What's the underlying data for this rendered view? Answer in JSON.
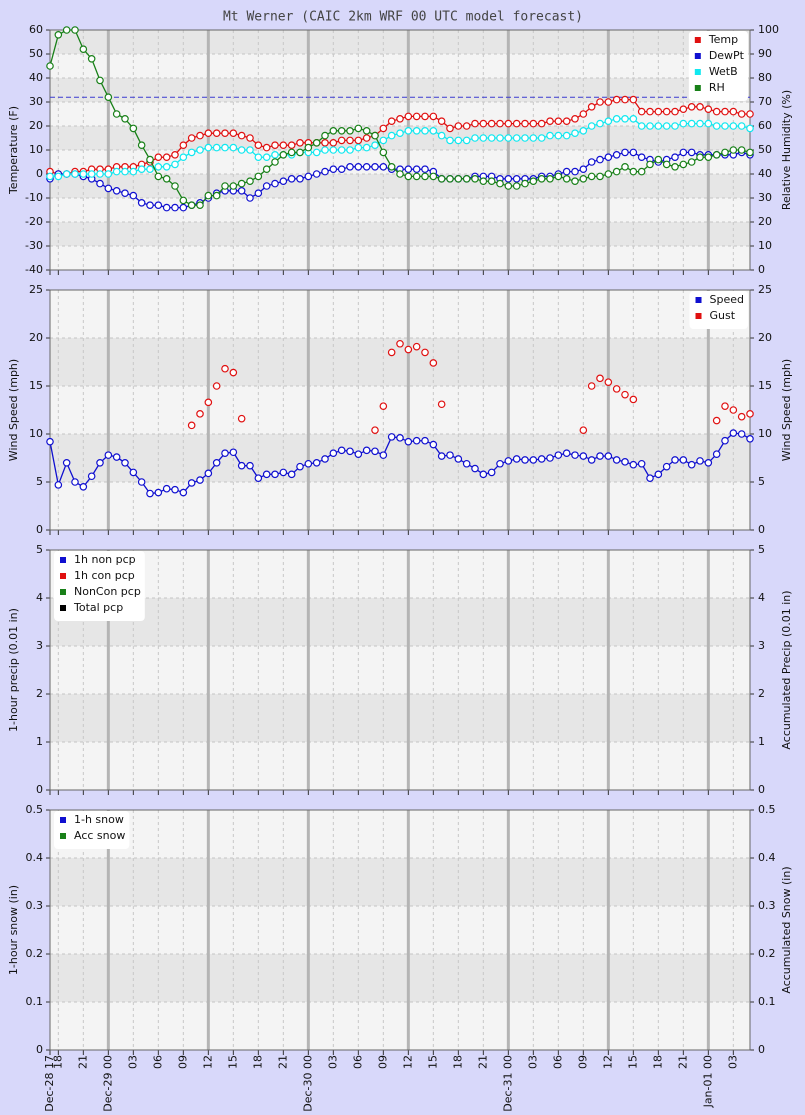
{
  "chart_data": [
    {
      "type": "line",
      "title": "Mt Werner (CAIC 2km WRF 00 UTC model forecast)",
      "ylabel": "Temperature (F)",
      "y2label": "Relative Humidity (%)",
      "legend": "upper right",
      "xlim": [
        0,
        84
      ],
      "ylim": [
        -40,
        60
      ],
      "yticks": [
        -40,
        -30,
        -20,
        -10,
        0,
        10,
        20,
        30,
        40,
        50,
        60
      ],
      "y2lim": [
        0,
        100
      ],
      "y2ticks": [
        0,
        10,
        20,
        30,
        40,
        50,
        60,
        70,
        80,
        90,
        100
      ],
      "hline": {
        "value": 32,
        "color": "#3a3ad0"
      },
      "x": [
        0,
        1,
        2,
        3,
        4,
        5,
        6,
        7,
        8,
        9,
        10,
        11,
        12,
        13,
        14,
        15,
        16,
        17,
        18,
        19,
        20,
        21,
        22,
        23,
        24,
        25,
        26,
        27,
        28,
        29,
        30,
        31,
        32,
        33,
        34,
        35,
        36,
        37,
        38,
        39,
        40,
        41,
        42,
        43,
        44,
        45,
        46,
        47,
        48,
        49,
        50,
        51,
        52,
        53,
        54,
        55,
        56,
        57,
        58,
        59,
        60,
        61,
        62,
        63,
        64,
        65,
        66,
        67,
        68,
        69,
        70,
        71,
        72,
        73,
        74,
        75,
        76,
        77,
        78,
        79,
        80,
        81,
        82,
        83,
        84
      ],
      "series": [
        {
          "name": "Temp",
          "color": "#e01010",
          "values": [
            1,
            0,
            0,
            1,
            1,
            2,
            2,
            2,
            3,
            3,
            3,
            4,
            5,
            7,
            7,
            8,
            12,
            15,
            16,
            17,
            17,
            17,
            17,
            16,
            15,
            12,
            11,
            12,
            12,
            12,
            13,
            13,
            13,
            13,
            13,
            14,
            14,
            14,
            15,
            16,
            19,
            22,
            23,
            24,
            24,
            24,
            24,
            22,
            19,
            20,
            20,
            21,
            21,
            21,
            21,
            21,
            21,
            21,
            21,
            21,
            22,
            22,
            22,
            23,
            25,
            28,
            30,
            30,
            31,
            31,
            31,
            26,
            26,
            26,
            26,
            26,
            27,
            28,
            28,
            27,
            26,
            26,
            26,
            25,
            25
          ]
        },
        {
          "name": "DewPt",
          "color": "#1010d0",
          "values": [
            -2,
            0,
            0,
            0,
            -1,
            -2,
            -4,
            -6,
            -7,
            -8,
            -9,
            -12,
            -13,
            -13,
            -14,
            -14,
            -14,
            -13,
            -12,
            -10,
            -8,
            -7,
            -7,
            -7,
            -10,
            -8,
            -5,
            -4,
            -3,
            -2,
            -2,
            -1,
            0,
            1,
            2,
            2,
            3,
            3,
            3,
            3,
            3,
            2,
            2,
            2,
            2,
            2,
            1,
            -2,
            -2,
            -2,
            -2,
            -1,
            -1,
            -1,
            -2,
            -2,
            -2,
            -2,
            -2,
            -1,
            -1,
            0,
            1,
            1,
            2,
            5,
            6,
            7,
            8,
            9,
            9,
            7,
            6,
            5,
            6,
            7,
            9,
            9,
            8,
            8,
            8,
            8,
            8,
            9,
            8
          ]
        },
        {
          "name": "WetB",
          "color": "#10e8f0",
          "values": [
            -1,
            -1,
            0,
            0,
            0,
            0,
            0,
            0,
            1,
            1,
            1,
            2,
            2,
            3,
            3,
            4,
            7,
            9,
            10,
            11,
            11,
            11,
            11,
            10,
            10,
            7,
            7,
            8,
            8,
            8,
            9,
            9,
            9,
            10,
            10,
            10,
            10,
            11,
            11,
            12,
            14,
            16,
            17,
            18,
            18,
            18,
            18,
            16,
            14,
            14,
            14,
            15,
            15,
            15,
            15,
            15,
            15,
            15,
            15,
            15,
            16,
            16,
            16,
            17,
            18,
            20,
            21,
            22,
            23,
            23,
            23,
            20,
            20,
            20,
            20,
            20,
            21,
            21,
            21,
            21,
            20,
            20,
            20,
            20,
            19
          ]
        },
        {
          "name": "RH",
          "color": "#188018",
          "axis": "y2",
          "values": [
            85,
            98,
            100,
            100,
            92,
            88,
            79,
            72,
            65,
            63,
            59,
            52,
            46,
            39,
            38,
            35,
            29,
            27,
            27,
            31,
            31,
            35,
            35,
            36,
            37,
            39,
            42,
            45,
            48,
            49,
            49,
            51,
            53,
            56,
            58,
            58,
            58,
            59,
            58,
            56,
            49,
            43,
            40,
            39,
            39,
            39,
            39,
            38,
            38,
            38,
            38,
            38,
            37,
            37,
            36,
            35,
            35,
            36,
            37,
            38,
            38,
            39,
            38,
            37,
            38,
            39,
            39,
            40,
            41,
            43,
            41,
            41,
            44,
            46,
            44,
            43,
            44,
            45,
            47,
            47,
            48,
            49,
            50,
            50,
            49
          ]
        }
      ]
    },
    {
      "type": "line",
      "ylabel": "Wind Speed (mph)",
      "y2label": "Wind Speed (mph)",
      "legend": "upper right",
      "xlim": [
        0,
        84
      ],
      "ylim": [
        0,
        25
      ],
      "yticks": [
        0,
        5,
        10,
        15,
        20,
        25
      ],
      "y2lim": [
        0,
        25
      ],
      "y2ticks": [
        0,
        5,
        10,
        15,
        20,
        25
      ],
      "x": [
        0,
        1,
        2,
        3,
        4,
        5,
        6,
        7,
        8,
        9,
        10,
        11,
        12,
        13,
        14,
        15,
        16,
        17,
        18,
        19,
        20,
        21,
        22,
        23,
        24,
        25,
        26,
        27,
        28,
        29,
        30,
        31,
        32,
        33,
        34,
        35,
        36,
        37,
        38,
        39,
        40,
        41,
        42,
        43,
        44,
        45,
        46,
        47,
        48,
        49,
        50,
        51,
        52,
        53,
        54,
        55,
        56,
        57,
        58,
        59,
        60,
        61,
        62,
        63,
        64,
        65,
        66,
        67,
        68,
        69,
        70,
        71,
        72,
        73,
        74,
        75,
        76,
        77,
        78,
        79,
        80,
        81,
        82,
        83,
        84
      ],
      "series": [
        {
          "name": "Speed",
          "color": "#1010d0",
          "values": [
            9.2,
            4.7,
            7,
            5,
            4.5,
            5.6,
            7,
            7.8,
            7.6,
            7,
            6,
            5,
            3.8,
            3.9,
            4.3,
            4.2,
            3.9,
            4.9,
            5.2,
            5.9,
            7,
            8,
            8.1,
            6.7,
            6.7,
            5.4,
            5.8,
            5.8,
            6,
            5.8,
            6.6,
            6.9,
            7,
            7.4,
            8,
            8.3,
            8.2,
            7.9,
            8.3,
            8.2,
            7.8,
            9.7,
            9.6,
            9.2,
            9.3,
            9.3,
            8.9,
            7.7,
            7.8,
            7.4,
            6.9,
            6.4,
            5.8,
            6,
            6.9,
            7.2,
            7.4,
            7.3,
            7.3,
            7.4,
            7.5,
            7.8,
            8,
            7.8,
            7.7,
            7.3,
            7.7,
            7.7,
            7.3,
            7.1,
            6.8,
            6.9,
            5.4,
            5.8,
            6.6,
            7.3,
            7.3,
            6.8,
            7.2,
            7,
            7.9,
            9.3,
            10.1,
            10,
            9.5
          ]
        },
        {
          "name": "Gust",
          "color": "#e01010",
          "line": false,
          "values": [
            null,
            null,
            null,
            null,
            null,
            null,
            null,
            null,
            null,
            null,
            null,
            null,
            null,
            null,
            null,
            null,
            null,
            10.9,
            12.1,
            13.3,
            15,
            16.8,
            16.4,
            11.6,
            null,
            null,
            null,
            null,
            null,
            null,
            null,
            null,
            null,
            null,
            null,
            null,
            null,
            null,
            null,
            10.4,
            12.9,
            18.5,
            19.4,
            18.8,
            19.1,
            18.5,
            17.4,
            13.1,
            null,
            null,
            null,
            null,
            null,
            null,
            null,
            null,
            null,
            null,
            null,
            null,
            null,
            null,
            null,
            null,
            10.4,
            15,
            15.8,
            15.4,
            14.7,
            14.1,
            13.6,
            null,
            null,
            null,
            null,
            null,
            null,
            null,
            null,
            null,
            11.4,
            12.9,
            12.5,
            11.8,
            12.1
          ]
        }
      ]
    },
    {
      "type": "bar",
      "ylabel": "1-hour precip (0.01 in)",
      "y2label": "Accumulated Precip (0.01 in)",
      "legend": "upper left",
      "xlim": [
        0,
        84
      ],
      "ylim": [
        0,
        5
      ],
      "yticks": [
        0,
        1,
        2,
        3,
        4,
        5
      ],
      "y2lim": [
        0,
        5
      ],
      "y2ticks": [
        0,
        1,
        2,
        3,
        4,
        5
      ],
      "series": [
        {
          "name": "1h non pcp",
          "color": "#1010d0"
        },
        {
          "name": "1h con pcp",
          "color": "#e01010"
        },
        {
          "name": "NonCon pcp",
          "color": "#188018"
        },
        {
          "name": "Total pcp",
          "color": "#000000"
        }
      ]
    },
    {
      "type": "bar",
      "ylabel": "1-hour snow (in)",
      "y2label": "Accumulated Snow (in)",
      "legend": "upper left",
      "xlim": [
        0,
        84
      ],
      "ylim": [
        0,
        0.5
      ],
      "yticks": [
        0,
        0.1,
        0.2,
        0.3,
        0.4,
        0.5
      ],
      "y2lim": [
        0,
        0.5
      ],
      "y2ticks": [
        0,
        0.1,
        0.2,
        0.3,
        0.4,
        0.5
      ],
      "xticks": [
        {
          "value": 0,
          "label": "Dec-28 17"
        },
        {
          "value": 1,
          "label": "18"
        },
        {
          "value": 4,
          "label": "21"
        },
        {
          "value": 7,
          "label": "Dec-29 00"
        },
        {
          "value": 10,
          "label": "03"
        },
        {
          "value": 13,
          "label": "06"
        },
        {
          "value": 16,
          "label": "09"
        },
        {
          "value": 19,
          "label": "12"
        },
        {
          "value": 22,
          "label": "15"
        },
        {
          "value": 25,
          "label": "18"
        },
        {
          "value": 28,
          "label": "21"
        },
        {
          "value": 31,
          "label": "Dec-30 00"
        },
        {
          "value": 34,
          "label": "03"
        },
        {
          "value": 37,
          "label": "06"
        },
        {
          "value": 40,
          "label": "09"
        },
        {
          "value": 43,
          "label": "12"
        },
        {
          "value": 46,
          "label": "15"
        },
        {
          "value": 49,
          "label": "18"
        },
        {
          "value": 52,
          "label": "21"
        },
        {
          "value": 55,
          "label": "Dec-31 00"
        },
        {
          "value": 58,
          "label": "03"
        },
        {
          "value": 61,
          "label": "06"
        },
        {
          "value": 64,
          "label": "09"
        },
        {
          "value": 67,
          "label": "12"
        },
        {
          "value": 70,
          "label": "15"
        },
        {
          "value": 73,
          "label": "18"
        },
        {
          "value": 76,
          "label": "21"
        },
        {
          "value": 79,
          "label": "Jan-01 00"
        },
        {
          "value": 82,
          "label": "03"
        }
      ],
      "series": [
        {
          "name": "1-h snow",
          "color": "#1010d0"
        },
        {
          "name": "Acc snow",
          "color": "#188018"
        }
      ]
    }
  ]
}
